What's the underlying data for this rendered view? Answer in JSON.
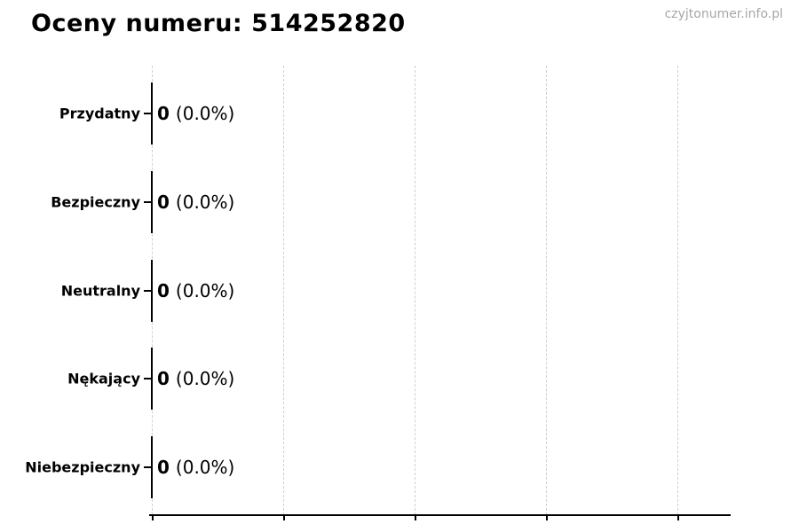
{
  "header": {
    "title": "Oceny numeru: 514252820",
    "watermark": "czyjtonumer.info.pl"
  },
  "chart_data": {
    "type": "bar",
    "orientation": "horizontal",
    "title": "Oceny numeru: 514252820",
    "categories": [
      "Przydatny",
      "Bezpieczny",
      "Neutralny",
      "Nękający",
      "Niebezpieczny"
    ],
    "values": [
      0,
      0,
      0,
      0,
      0
    ],
    "percentages": [
      0.0,
      0.0,
      0.0,
      0.0,
      0.0
    ],
    "annotations": [
      {
        "count": "0",
        "percent": "(0.0%)"
      },
      {
        "count": "0",
        "percent": "(0.0%)"
      },
      {
        "count": "0",
        "percent": "(0.0%)"
      },
      {
        "count": "0",
        "percent": "(0.0%)"
      },
      {
        "count": "0",
        "percent": "(0.0%)"
      }
    ],
    "xlabel": "",
    "ylabel": "",
    "xlim": [
      0,
      1.1
    ],
    "x_tick_count": 5,
    "x_tick_labels_visible": false,
    "grid": {
      "axis": "x",
      "style": "dashed",
      "color": "#cfcfcf"
    },
    "legend": null
  },
  "colors": {
    "background": "#ffffff",
    "text": "#000000",
    "grid": "#cfcfcf",
    "axis": "#000000",
    "watermark": "#a6a6a6"
  }
}
